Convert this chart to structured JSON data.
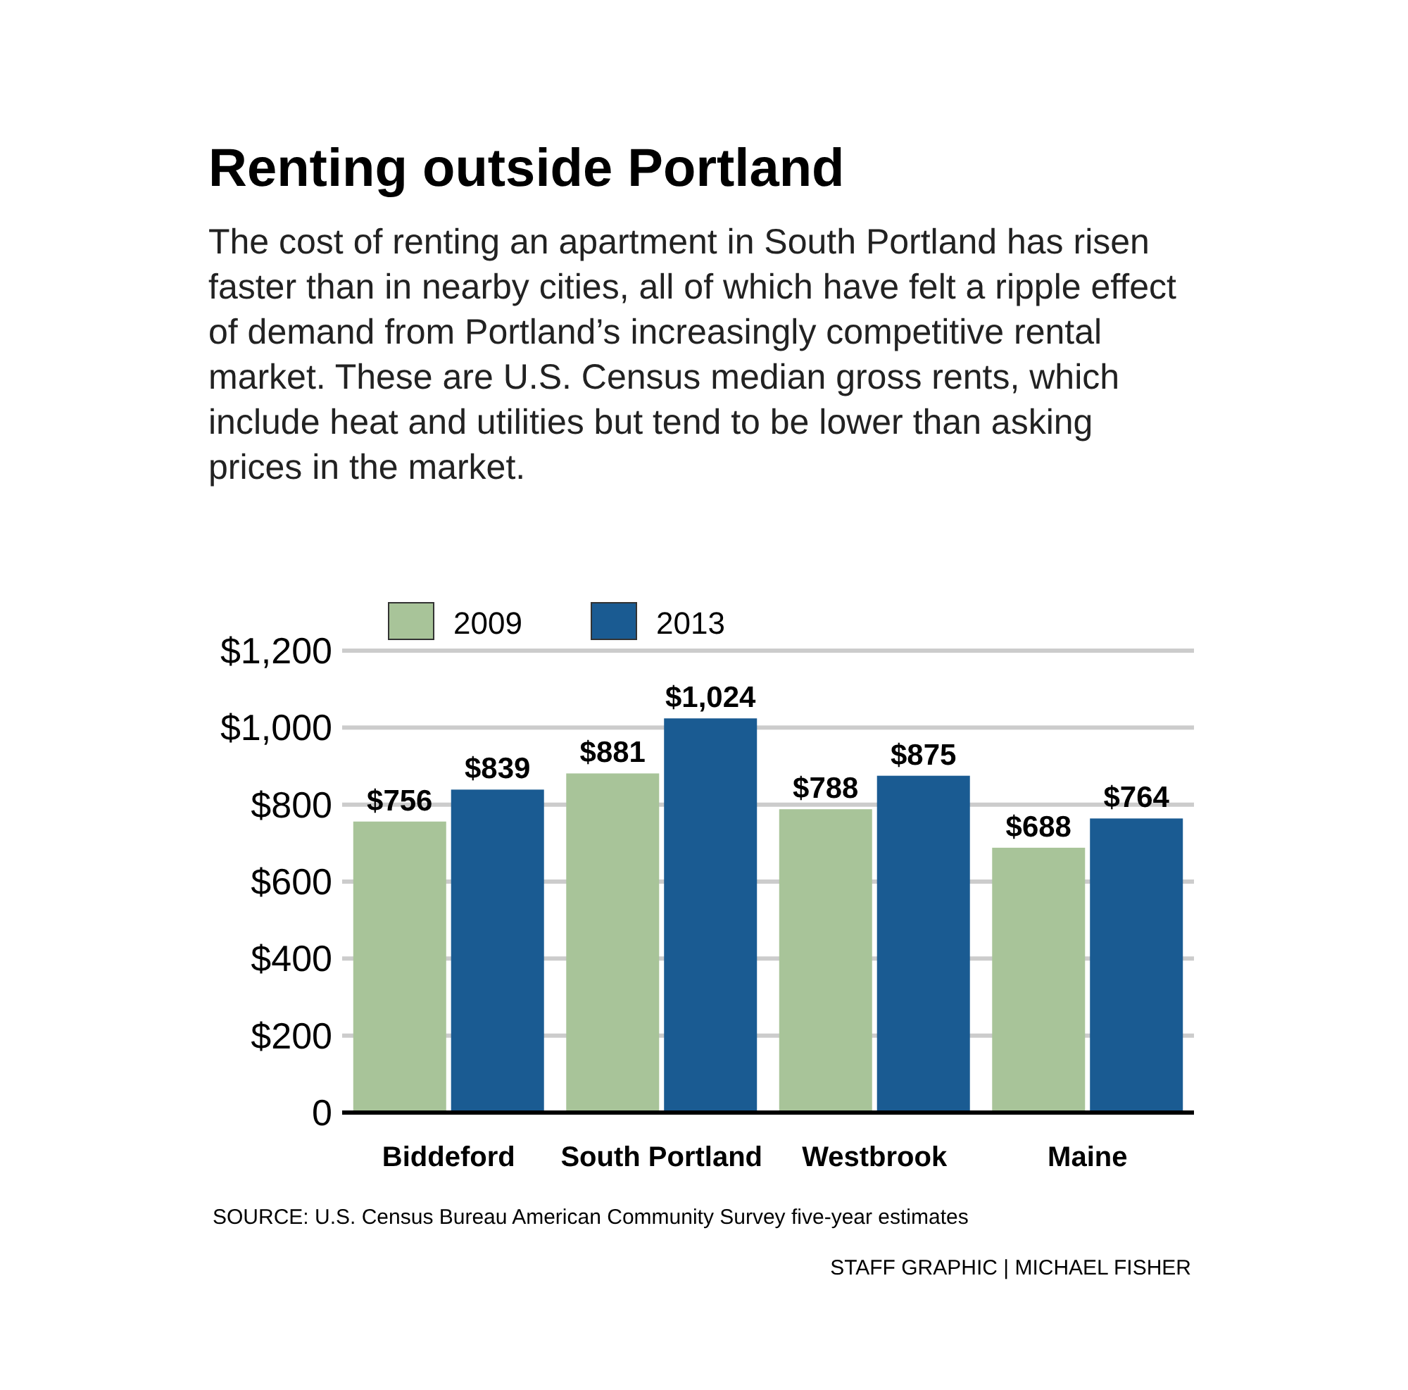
{
  "chart_data": {
    "type": "bar",
    "title": "Renting outside Portland",
    "subtitle": "The cost of renting an apartment in South Portland has risen faster than in nearby cities, all of which have felt a ripple effect of demand from Portland’s increasingly competitive rental market. These are U.S. Census median gross rents, which include heat and utilities but tend to be lower than asking prices in the market.",
    "categories": [
      "Biddeford",
      "South Portland",
      "Westbrook",
      "Maine"
    ],
    "series": [
      {
        "name": "2009",
        "color": "#a8c499",
        "values": [
          756,
          881,
          788,
          688
        ],
        "value_labels": [
          "$756",
          "$881",
          "$788",
          "$688"
        ]
      },
      {
        "name": "2013",
        "color": "#1a5b92",
        "values": [
          839,
          1024,
          875,
          764
        ],
        "value_labels": [
          "$839",
          "$1,024",
          "$875",
          "$764"
        ]
      }
    ],
    "ylim": [
      0,
      1200
    ],
    "yticks": [
      0,
      {
        "value": 200,
        "label": "$200"
      },
      {
        "value": 400,
        "label": "$400"
      },
      {
        "value": 600,
        "label": "$600"
      },
      {
        "value": 800,
        "label": "$800"
      },
      {
        "value": 1000,
        "label": "$1,000"
      },
      {
        "value": 1200,
        "label": "$1,200"
      }
    ],
    "grid": "y",
    "legend": "top",
    "annotations": [
      "SOURCE: U.S. Census Bureau American Community Survey five-year estimates",
      "STAFF GRAPHIC | MICHAEL FISHER"
    ]
  }
}
